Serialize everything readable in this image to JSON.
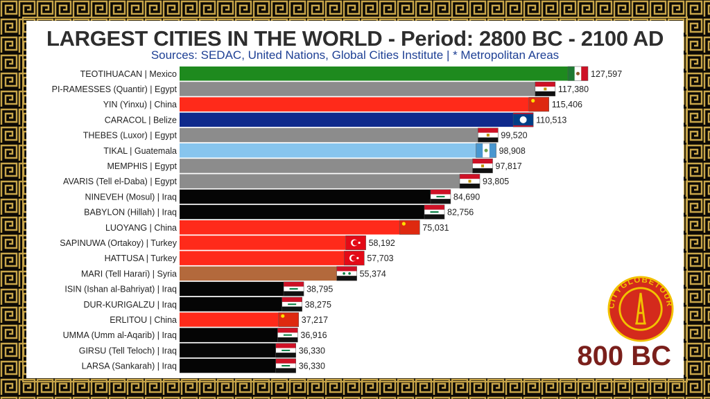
{
  "header": {
    "title": "LARGEST CITIES IN THE WORLD - Period: 2800 BC - 2100 AD",
    "subtitle": "Sources: SEDAC, United Nations, Global Cities Institute | * Metropolitan Areas"
  },
  "period_label": "800 BC",
  "logo": {
    "text": "CITYGLOBETOUR",
    "icon": "eiffel-tower-icon"
  },
  "chart_data": {
    "type": "bar",
    "orientation": "horizontal",
    "title": "LARGEST CITIES IN THE WORLD - Period: 2800 BC - 2100 AD",
    "xlim": [
      0,
      127597
    ],
    "categories": [
      "TEOTIHUACAN | Mexico",
      "PI-RAMESSES (Quantir) | Egypt",
      "YIN (Yinxu) | China",
      "CARACOL | Belize",
      "THEBES (Luxor) | Egypt",
      "TIKAL | Guatemala",
      "MEMPHIS | Egypt",
      "AVARIS (Tell el-Daba) | Egypt",
      "NINEVEH (Mosul) | Iraq",
      "BABYLON (Hillah) | Iraq",
      "LUOYANG | China",
      "SAPINUWA (Ortakoy) | Turkey",
      "HATTUSA | Turkey",
      "MARI (Tell Harari) | Syria",
      "ISIN (Ishan al-Bahriyat) | Iraq",
      "DUR-KURIGALZU | Iraq",
      "ERLITOU | China",
      "UMMA (Umm al-Aqarib) | Iraq",
      "GIRSU (Tell Teloch) | Iraq",
      "LARSA (Sankarah) | Iraq"
    ],
    "values": [
      127597,
      117380,
      115406,
      110513,
      99520,
      98908,
      97817,
      93805,
      84690,
      82756,
      75031,
      58192,
      57703,
      55374,
      38795,
      38275,
      37217,
      36916,
      36330,
      36330
    ],
    "value_labels": [
      "127,597",
      "117,380",
      "115,406",
      "110,513",
      "99,520",
      "98,908",
      "97,817",
      "93,805",
      "84,690",
      "82,756",
      "75,031",
      "58,192",
      "57,703",
      "55,374",
      "38,795",
      "38,275",
      "37,217",
      "36,916",
      "36,330",
      "36,330"
    ],
    "countries": [
      "mexico",
      "egypt",
      "china",
      "belize",
      "egypt",
      "guatemala",
      "egypt",
      "egypt",
      "iraq",
      "iraq",
      "china",
      "turkey",
      "turkey",
      "syria",
      "iraq",
      "iraq",
      "china",
      "iraq",
      "iraq",
      "iraq"
    ],
    "bar_colors": [
      "#1e8a1e",
      "#8c8c8c",
      "#ff2a1a",
      "#0f2a8c",
      "#8c8c8c",
      "#87c5ee",
      "#8c8c8c",
      "#8c8c8c",
      "#050505",
      "#050505",
      "#ff2a1a",
      "#ff2a1a",
      "#ff2a1a",
      "#b3693c",
      "#050505",
      "#050505",
      "#ff2a1a",
      "#050505",
      "#050505",
      "#050505"
    ],
    "legend": "none",
    "grid": false
  }
}
